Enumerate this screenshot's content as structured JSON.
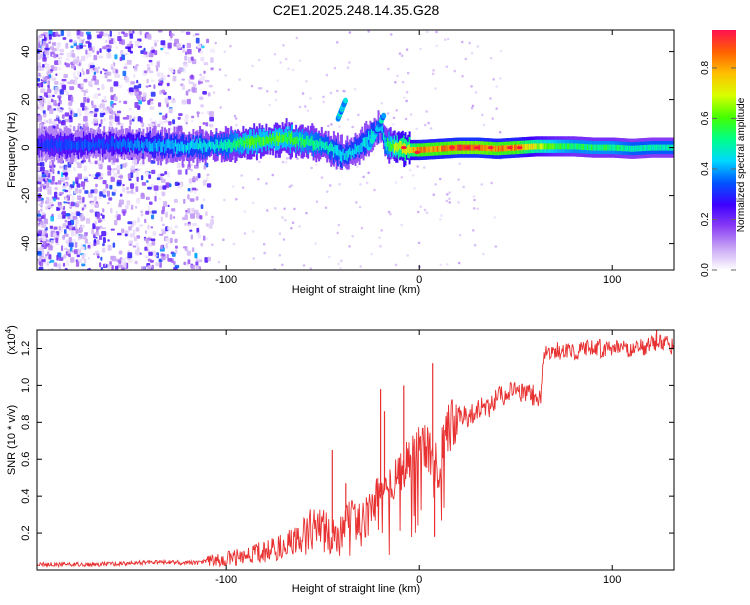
{
  "title": "C2E1.2025.248.14.35.G28",
  "chart_data": [
    {
      "type": "heatmap",
      "name": "spectrogram",
      "xlabel": "Height of straight line (km)",
      "ylabel": "Frequency (Hz)",
      "xlim": [
        -198,
        132
      ],
      "ylim": [
        -51,
        49
      ],
      "x_ticks": [
        -100,
        0,
        100
      ],
      "x_tick_labels": [
        "-100",
        "0",
        "100"
      ],
      "y_ticks": [
        40,
        20,
        0,
        -20,
        -40
      ],
      "y_tick_labels": [
        "40",
        "20",
        "0",
        "-20",
        "-40"
      ],
      "colorbar": {
        "label": "Normalized spectral amplitude",
        "range": [
          0,
          0.95
        ],
        "ticks": [
          0,
          0.2,
          0.4,
          0.6,
          0.8
        ],
        "tick_labels": [
          "0.0",
          "0.2",
          "0.4",
          "0.6",
          "0.8"
        ],
        "colors": [
          "#ffffff",
          "#c9a6f5",
          "#8a3df5",
          "#3d00ff",
          "#0055ff",
          "#00d8ff",
          "#00ff88",
          "#44ff00",
          "#d8ff00",
          "#ffc000",
          "#ff6000",
          "#ff1050"
        ]
      },
      "ridge": {
        "x": [
          -198,
          -180,
          -160,
          -140,
          -120,
          -100,
          -90,
          -80,
          -70,
          -60,
          -50,
          -40,
          -35,
          -30,
          -25,
          -20,
          -18,
          -15,
          -10,
          -5,
          0,
          10,
          20,
          30,
          40,
          50,
          60,
          70,
          80,
          90,
          100,
          110,
          120,
          132
        ],
        "freq": [
          1.5,
          1.0,
          1.5,
          1.0,
          0.5,
          1.0,
          2.0,
          3.0,
          4.0,
          3.0,
          1.0,
          -3.0,
          -2.0,
          1.0,
          5.0,
          9.0,
          2.0,
          0.5,
          0.0,
          -1.0,
          -1.0,
          -0.5,
          0.0,
          0.0,
          -0.5,
          0.0,
          0.5,
          0.5,
          0.5,
          0.0,
          0.0,
          -0.5,
          0.0,
          0.0
        ],
        "amplitude": [
          0.3,
          0.35,
          0.35,
          0.4,
          0.45,
          0.5,
          0.6,
          0.6,
          0.6,
          0.55,
          0.5,
          0.45,
          0.45,
          0.45,
          0.45,
          0.45,
          0.5,
          0.6,
          0.75,
          0.75,
          0.85,
          0.85,
          0.9,
          0.9,
          0.85,
          0.85,
          0.7,
          0.6,
          0.55,
          0.55,
          0.55,
          0.5,
          0.5,
          0.5
        ]
      },
      "high_points": [
        {
          "x": -8,
          "freq": 0
        },
        {
          "x": -1,
          "freq": -2
        },
        {
          "x": 17,
          "freq": 0
        },
        {
          "x": 25,
          "freq": 0
        },
        {
          "x": 30,
          "freq": 0
        },
        {
          "x": 37,
          "freq": 0
        },
        {
          "x": 47,
          "freq": 0
        },
        {
          "x": 52,
          "freq": 0
        }
      ]
    },
    {
      "type": "line",
      "name": "snr",
      "xlabel": "Height of straight line (km)",
      "ylabel": "SNR (10 * v/v)",
      "y_multiplier": "(x10",
      "y_multiplier_exp": "4",
      "y_multiplier_close": ")",
      "xlim": [
        -198,
        132
      ],
      "ylim": [
        0,
        1.3
      ],
      "x_ticks": [
        -100,
        0,
        100
      ],
      "x_tick_labels": [
        "-100",
        "0",
        "100"
      ],
      "y_ticks": [
        1.2,
        1.0,
        0.8,
        0.6,
        0.4,
        0.2
      ],
      "y_tick_labels": [
        "1.2",
        "1.0",
        "0.8",
        "0.6",
        "0.4",
        "0.2"
      ],
      "color": "#e83030",
      "x": [
        -198,
        -170,
        -140,
        -115,
        -110,
        -100,
        -90,
        -80,
        -70,
        -60,
        -55,
        -50,
        -45,
        -40,
        -35,
        -30,
        -25,
        -20,
        -15,
        -10,
        -5,
        0,
        5,
        10,
        15,
        20,
        25,
        30,
        35,
        40,
        45,
        50,
        55,
        60,
        63,
        65,
        70,
        80,
        90,
        100,
        110,
        120,
        125,
        132
      ],
      "y": [
        0.03,
        0.03,
        0.04,
        0.04,
        0.05,
        0.06,
        0.08,
        0.1,
        0.13,
        0.18,
        0.22,
        0.24,
        0.2,
        0.24,
        0.3,
        0.23,
        0.33,
        0.42,
        0.45,
        0.52,
        0.6,
        0.68,
        0.66,
        0.55,
        0.75,
        0.85,
        0.82,
        0.88,
        0.87,
        0.93,
        0.95,
        0.97,
        0.96,
        0.94,
        0.95,
        1.18,
        1.19,
        1.18,
        1.2,
        1.2,
        1.19,
        1.22,
        1.24,
        1.2
      ],
      "spikes": [
        {
          "x": -45,
          "y": 0.65
        },
        {
          "x": -38,
          "y": 0.47
        },
        {
          "x": -20,
          "y": 0.98
        },
        {
          "x": -18,
          "y": 0.86
        },
        {
          "x": -8,
          "y": 1.0
        },
        {
          "x": 7,
          "y": 1.12
        },
        {
          "x": 8,
          "y": 0.18
        },
        {
          "x": 123,
          "y": 1.3
        }
      ]
    }
  ]
}
